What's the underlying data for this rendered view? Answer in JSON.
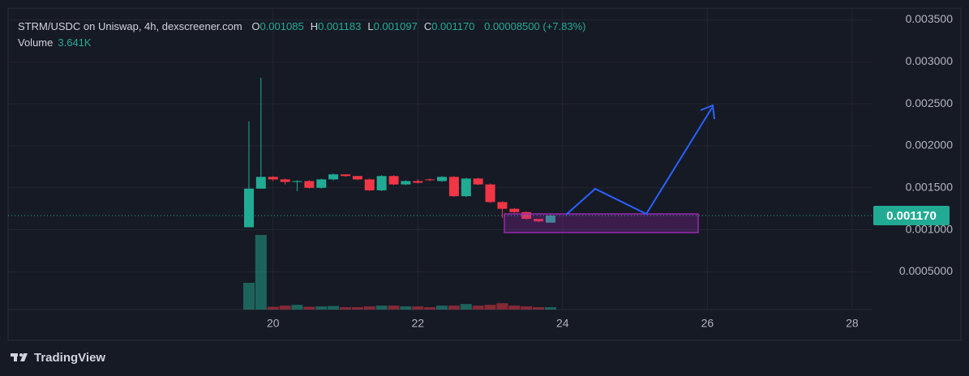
{
  "chart_data": {
    "type": "candlestick",
    "title": "STRM/USDC on Uniswap, 4h, dexscreener.com",
    "ohlc_legend": [
      {
        "key": "O",
        "value": "0.001085"
      },
      {
        "key": "H",
        "value": "0.001183"
      },
      {
        "key": "L",
        "value": "0.001097"
      },
      {
        "key": "C",
        "value": "0.001170"
      }
    ],
    "change": "0.00008500 (+7.83%)",
    "volume_name": "Volume",
    "volume_value": "3.641K",
    "x": [
      19.667,
      19.833,
      20,
      20.167,
      20.333,
      20.5,
      20.667,
      20.833,
      21,
      21.167,
      21.333,
      21.5,
      21.667,
      21.833,
      22,
      22.167,
      22.333,
      22.5,
      22.667,
      22.833,
      23,
      23.167,
      23.333,
      23.5,
      23.667,
      23.833
    ],
    "open": [
      0.00103,
      0.00149,
      0.00163,
      0.0016,
      0.00157,
      0.00158,
      0.0015,
      0.0016,
      0.00166,
      0.00164,
      0.0016,
      0.00147,
      0.00164,
      0.00154,
      0.00158,
      0.0016,
      0.00158,
      0.00163,
      0.0014,
      0.00161,
      0.00154,
      0.00133,
      0.00125,
      0.00121,
      0.00113,
      0.001085
    ],
    "high": [
      0.00229,
      0.00281,
      0.00164,
      0.00161,
      0.00159,
      0.00159,
      0.00161,
      0.00167,
      0.00166,
      0.00164,
      0.00161,
      0.00165,
      0.00165,
      0.00159,
      0.0016,
      0.00161,
      0.00164,
      0.00164,
      0.00162,
      0.00162,
      0.00155,
      0.00134,
      0.00126,
      0.00122,
      0.00113,
      0.001183
    ],
    "low": [
      0.00103,
      0.00149,
      0.00158,
      0.00154,
      0.00146,
      0.00149,
      0.00149,
      0.00159,
      0.00163,
      0.00159,
      0.00146,
      0.00146,
      0.00153,
      0.00153,
      0.00155,
      0.00158,
      0.00157,
      0.00139,
      0.00139,
      0.00153,
      0.00132,
      0.00114,
      0.0012,
      0.00112,
      0.00109,
      0.001097
    ],
    "close": [
      0.00149,
      0.00163,
      0.0016,
      0.00157,
      0.00158,
      0.0015,
      0.0016,
      0.00166,
      0.00164,
      0.0016,
      0.00147,
      0.00164,
      0.00154,
      0.00158,
      0.00156,
      0.00159,
      0.00163,
      0.0014,
      0.00161,
      0.00154,
      0.00133,
      0.00125,
      0.00121,
      0.00113,
      0.0011,
      0.00117
    ],
    "volume": [
      40500,
      113000,
      4200,
      6000,
      7200,
      4200,
      4800,
      5400,
      3600,
      3600,
      4800,
      6000,
      6000,
      4800,
      4800,
      3600,
      6000,
      6000,
      8400,
      6000,
      7200,
      9600,
      6000,
      4800,
      3600,
      3641
    ],
    "up_color": "#22ab94",
    "down_color": "#f23645",
    "xlim": [
      16.34,
      28.27
    ],
    "xticks": [
      20,
      22,
      24,
      26,
      28
    ],
    "ylim": [
      5e-05,
      0.00364
    ],
    "yticks": [
      {
        "value": 0.0005,
        "label": "0.0005000"
      },
      {
        "value": 0.001,
        "label": "0.001000"
      },
      {
        "value": 0.0015,
        "label": "0.001500"
      },
      {
        "value": 0.002,
        "label": "0.002000"
      },
      {
        "value": 0.0025,
        "label": "0.002500"
      },
      {
        "value": 0.003,
        "label": "0.003000"
      },
      {
        "value": 0.0035,
        "label": "0.003500"
      }
    ],
    "volume_ylim": [
      0,
      135000
    ],
    "last_price": {
      "value": 0.00117,
      "label": "0.001170"
    },
    "grid": true
  },
  "footer": {
    "brand": "TradingView"
  }
}
